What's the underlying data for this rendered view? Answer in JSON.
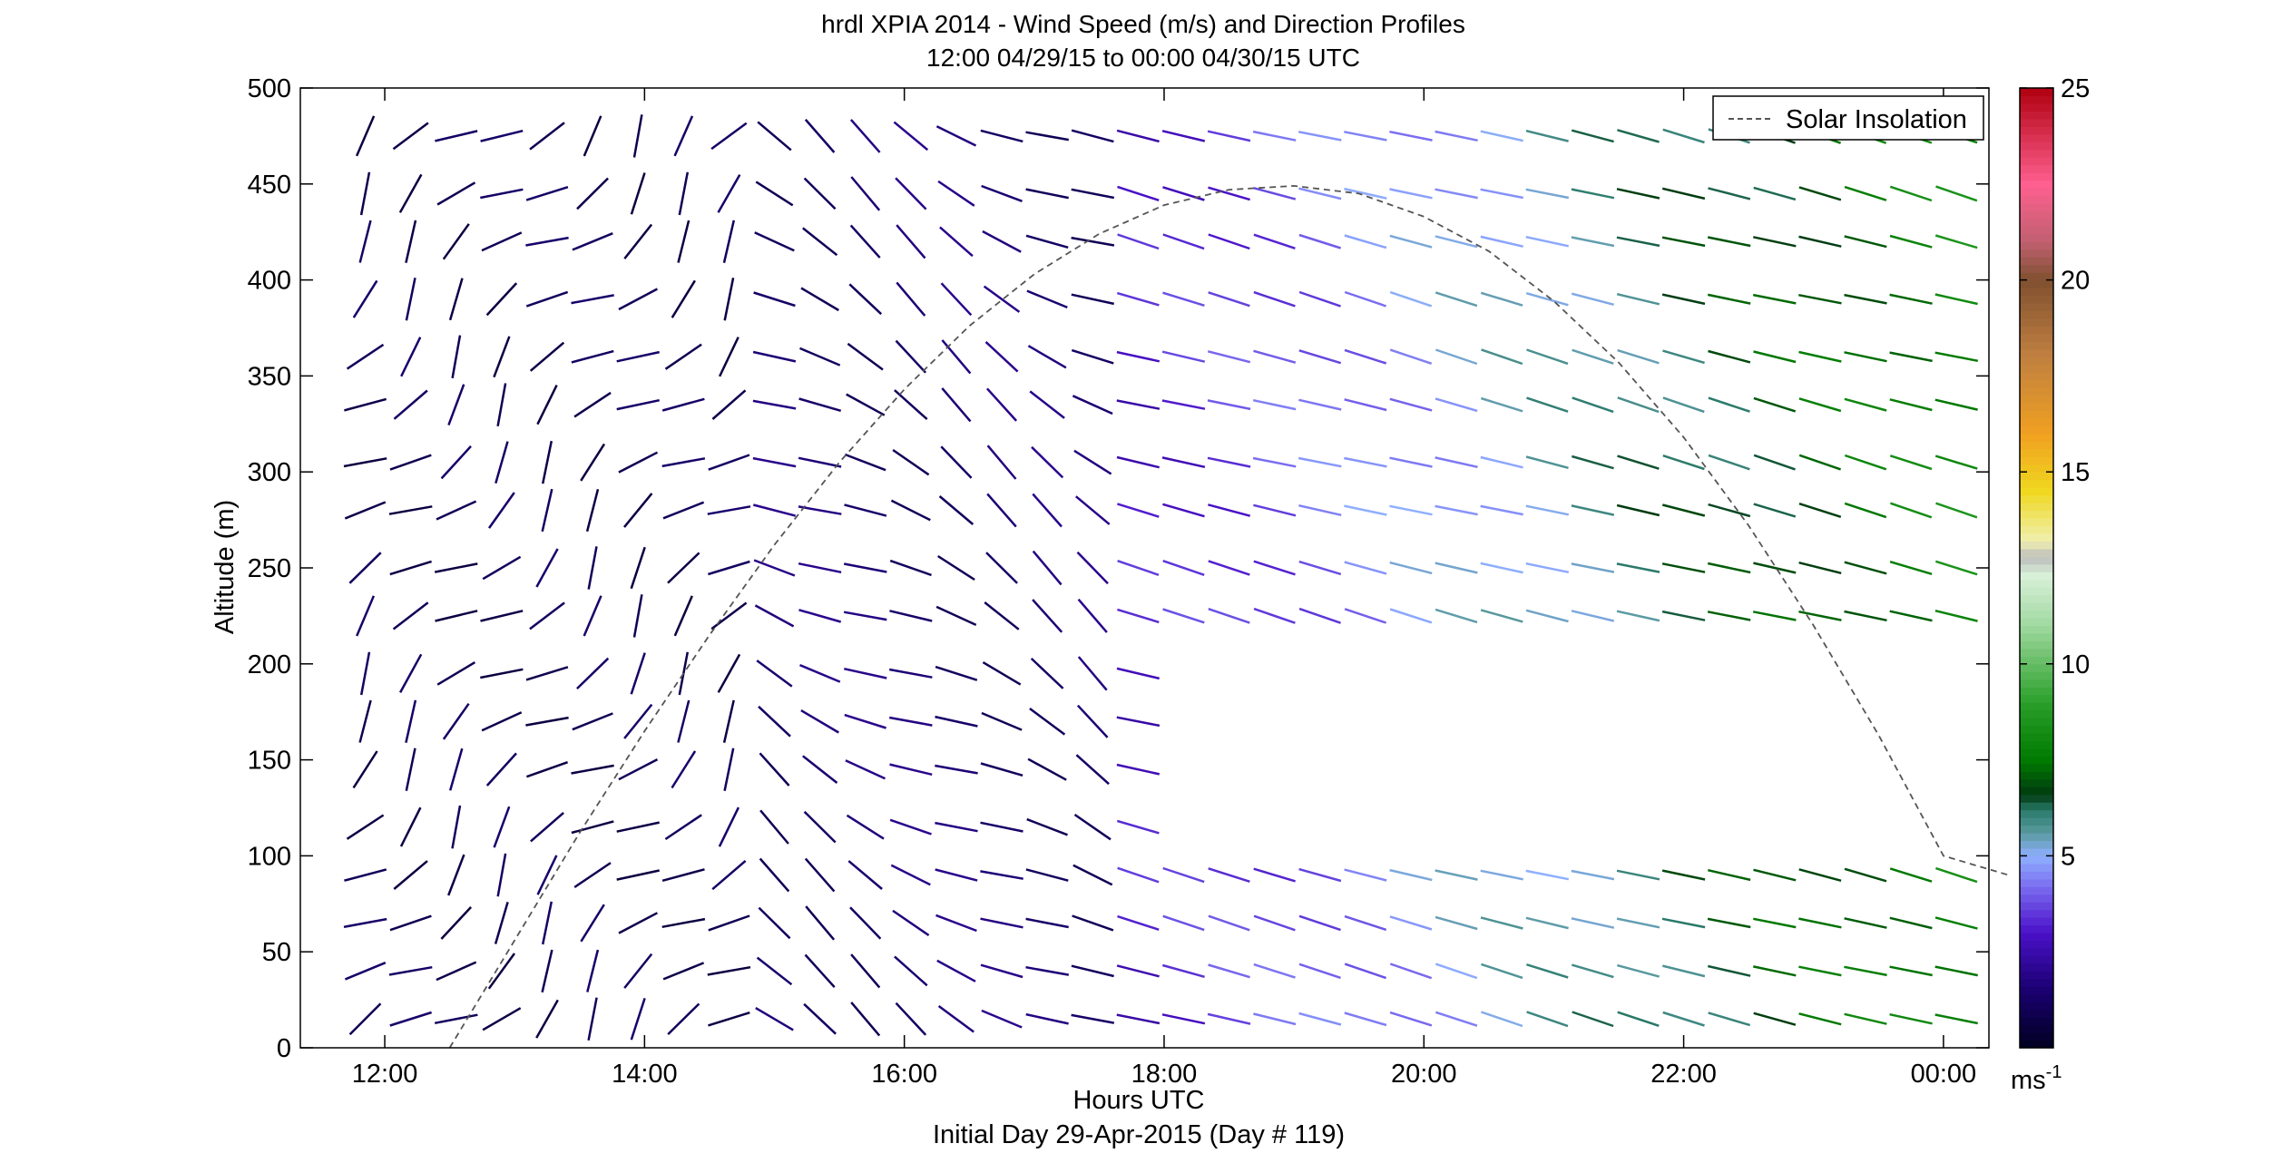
{
  "chart_data": {
    "type": "wind-barb-profile",
    "title": "hrdl XPIA 2014 - Wind Speed (m/s) and Direction Profiles",
    "subtitle": "12:00 04/29/15 to 00:00 04/30/15  UTC",
    "xlabel": "Hours UTC",
    "ylabel": "Altitude (m)",
    "footer": "Initial Day 29-Apr-2015 (Day # 119)",
    "xlim": [
      11.35,
      24.35
    ],
    "ylim": [
      0,
      500
    ],
    "x_ticks": [
      {
        "value": 12,
        "label": "12:00"
      },
      {
        "value": 14,
        "label": "14:00"
      },
      {
        "value": 16,
        "label": "16:00"
      },
      {
        "value": 18,
        "label": "18:00"
      },
      {
        "value": 20,
        "label": "20:00"
      },
      {
        "value": 22,
        "label": "22:00"
      },
      {
        "value": 24,
        "label": "00:00"
      }
    ],
    "y_ticks": [
      0,
      50,
      100,
      150,
      200,
      250,
      300,
      350,
      400,
      450,
      500
    ],
    "y_tick_labels": [
      "0",
      "50",
      "100",
      "150",
      "200",
      "250",
      "300",
      "350",
      "400",
      "450",
      "500"
    ],
    "colorbar": {
      "min": 0,
      "max": 25,
      "ticks": [
        5,
        10,
        15,
        20,
        25
      ],
      "tick_labels": [
        "5",
        "10",
        "15",
        "20",
        "25"
      ],
      "unit_label": "ms",
      "unit_exp": "-1",
      "stops": [
        {
          "v": 0,
          "color": "#000020"
        },
        {
          "v": 1.5,
          "color": "#1a0070"
        },
        {
          "v": 3,
          "color": "#4a10c8"
        },
        {
          "v": 4.2,
          "color": "#7a6cf0"
        },
        {
          "v": 5,
          "color": "#8fb0ff"
        },
        {
          "v": 5.6,
          "color": "#5a9aa0"
        },
        {
          "v": 6.2,
          "color": "#2a7a6a"
        },
        {
          "v": 6.6,
          "color": "#003a10"
        },
        {
          "v": 7.5,
          "color": "#007a00"
        },
        {
          "v": 9,
          "color": "#2aa02a"
        },
        {
          "v": 11,
          "color": "#a0d8a0"
        },
        {
          "v": 12.3,
          "color": "#d8f0d8"
        },
        {
          "v": 12.8,
          "color": "#bdbdbd"
        },
        {
          "v": 13.2,
          "color": "#f0f0b0"
        },
        {
          "v": 14.5,
          "color": "#f0d820"
        },
        {
          "v": 16,
          "color": "#f0a020"
        },
        {
          "v": 18,
          "color": "#c08040"
        },
        {
          "v": 20,
          "color": "#805030"
        },
        {
          "v": 21,
          "color": "#c06070"
        },
        {
          "v": 22.5,
          "color": "#ff6090"
        },
        {
          "v": 25,
          "color": "#b00010"
        }
      ]
    },
    "legend": {
      "entries": [
        "Solar Insolation"
      ],
      "placement": "top-right",
      "line_style": "dashed",
      "line_color": "#555555"
    },
    "series": [
      {
        "name": "Solar Insolation",
        "style": "dashed",
        "x": [
          12.5,
          13.0,
          13.5,
          14.0,
          14.5,
          15.0,
          15.5,
          16.0,
          16.5,
          17.0,
          17.5,
          18.0,
          18.5,
          19.0,
          19.5,
          20.0,
          20.5,
          21.0,
          21.5,
          22.0,
          22.5,
          23.0,
          23.5,
          24.0,
          24.5
        ],
        "y": [
          0,
          56,
          112,
          165,
          215,
          262,
          305,
          343,
          376,
          403,
          424,
          439,
          447,
          449,
          445,
          433,
          415,
          389,
          357,
          318,
          272,
          220,
          163,
          100,
          90
        ]
      }
    ],
    "barbs": {
      "times": [
        11.85,
        12.2,
        12.55,
        12.9,
        13.25,
        13.6,
        13.95,
        14.3,
        14.65,
        15.0,
        15.35,
        15.7,
        16.05,
        16.4,
        16.75,
        17.1,
        17.45,
        17.8,
        18.15,
        18.5,
        18.85,
        19.2,
        19.55,
        19.9,
        20.25,
        20.6,
        20.95,
        21.3,
        21.65,
        22.0,
        22.35,
        22.7,
        23.05,
        23.4,
        23.75,
        24.1
      ],
      "altitudes": [
        15,
        40,
        65,
        90,
        115,
        145,
        170,
        195,
        225,
        250,
        280,
        305,
        335,
        360,
        390,
        420,
        445,
        475
      ],
      "morning_end_hour": 15.0,
      "afternoon_end_hour": 17.8,
      "morning_speed_m_s": 1.0,
      "morning_dir_deg": 225,
      "afternoon_speed_m_s": 1.5,
      "afternoon_dir_deg": 300,
      "evening_speed_start_m_s": 3.0,
      "evening_speed_end_m_s": 8.0,
      "evening_dir_deg": 285,
      "gaps": [
        {
          "t_from": 18.1,
          "t_to": 24.35,
          "alt_from": 115,
          "alt_to": 175
        },
        {
          "t_from": 18.1,
          "t_to": 24.35,
          "alt_from": 140,
          "alt_to": 195
        }
      ]
    }
  }
}
